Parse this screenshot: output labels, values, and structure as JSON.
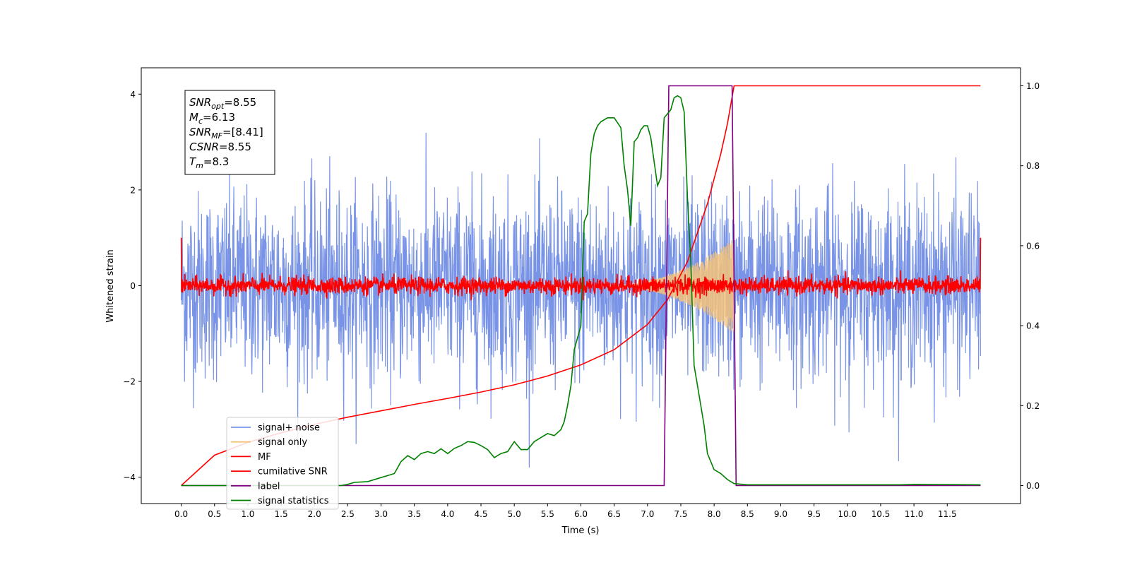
{
  "chart_data": {
    "type": "line",
    "xlabel": "Time (s)",
    "ylabel": "Whitened strain",
    "xlim": [
      -0.6,
      12.6
    ],
    "ylim": [
      -4.55,
      4.55
    ],
    "y2lim": [
      -0.045,
      1.045
    ],
    "x_ticks": [
      "0.0",
      "0.5",
      "1.0",
      "1.5",
      "2.0",
      "2.5",
      "3.0",
      "3.5",
      "4.0",
      "4.5",
      "5.0",
      "5.5",
      "6.0",
      "6.5",
      "7.0",
      "7.5",
      "8.0",
      "8.5",
      "9.0",
      "9.5",
      "10.0",
      "10.5",
      "11.0",
      "11.5"
    ],
    "y_ticks": [
      "4",
      "2",
      "0",
      "−2",
      "−4"
    ],
    "y2_ticks": [
      "1.0",
      "0.8",
      "0.6",
      "0.4",
      "0.2",
      "0.0"
    ],
    "legend_position": "lower-left",
    "legend": [
      {
        "label": "signal+ noise",
        "color": "#7994e6"
      },
      {
        "label": "signal only",
        "color": "#f5c27a"
      },
      {
        "label": "MF",
        "color": "#ff0000"
      },
      {
        "label": "cumilative SNR",
        "color": "#ff0000"
      },
      {
        "label": "label",
        "color": "#800080"
      },
      {
        "label": "signal statistics",
        "color": "#008000"
      }
    ],
    "annotation": {
      "lines": [
        {
          "main": "SNR",
          "sub": "opt",
          "rest": "=8.55"
        },
        {
          "main": "M",
          "sub": "c",
          "rest": "=6.13"
        },
        {
          "main": "SNR",
          "sub": "MF",
          "rest": "=[8.41]"
        },
        {
          "main": "CSNR",
          "sub": "",
          "rest": "=8.55"
        },
        {
          "main": "T",
          "sub": "m",
          "rest": "=8.3"
        }
      ]
    },
    "series": [
      {
        "name": "signal+ noise",
        "axis": "left",
        "style": "noise",
        "t_start": 0.0,
        "t_end": 12.0,
        "amplitude": 1.3,
        "peak_max": 4.1,
        "peak_min": -3.8
      },
      {
        "name": "signal only",
        "axis": "left",
        "style": "chirp",
        "t_start": 6.3,
        "t_end": 8.3,
        "peak_amplitude": 1.0
      },
      {
        "name": "MF",
        "axis": "left",
        "style": "noise",
        "t_start": 0.0,
        "t_end": 12.0,
        "amplitude": 0.12,
        "edge_value": 1.0
      },
      {
        "name": "cumilative SNR",
        "axis": "right",
        "x": [
          0.0,
          0.5,
          1.0,
          1.5,
          2.0,
          2.5,
          3.0,
          3.5,
          4.0,
          4.5,
          5.0,
          5.5,
          6.0,
          6.5,
          7.0,
          7.3,
          7.6,
          7.9,
          8.1,
          8.2,
          8.3,
          8.3,
          12.0
        ],
        "y": [
          0.0,
          0.076,
          0.108,
          0.132,
          0.153,
          0.171,
          0.187,
          0.203,
          0.218,
          0.234,
          0.252,
          0.274,
          0.302,
          0.34,
          0.403,
          0.465,
          0.56,
          0.705,
          0.83,
          0.905,
          1.0,
          1.0,
          1.0
        ]
      },
      {
        "name": "label",
        "axis": "right",
        "x": [
          0.0,
          7.25,
          7.32,
          8.27,
          8.33,
          12.0
        ],
        "y": [
          0.0,
          0.0,
          1.0,
          1.0,
          0.0,
          0.0
        ]
      },
      {
        "name": "signal statistics",
        "axis": "right",
        "x": [
          0.0,
          0.5,
          1.0,
          1.5,
          2.0,
          2.4,
          2.5,
          2.6,
          2.8,
          3.0,
          3.1,
          3.2,
          3.3,
          3.4,
          3.5,
          3.6,
          3.7,
          3.8,
          3.9,
          4.0,
          4.1,
          4.2,
          4.3,
          4.4,
          4.5,
          4.6,
          4.7,
          4.8,
          4.9,
          5.0,
          5.1,
          5.2,
          5.3,
          5.4,
          5.5,
          5.6,
          5.7,
          5.75,
          5.8,
          5.85,
          5.9,
          5.95,
          6.0,
          6.05,
          6.1,
          6.15,
          6.2,
          6.25,
          6.3,
          6.4,
          6.5,
          6.6,
          6.65,
          6.7,
          6.75,
          6.8,
          6.85,
          6.9,
          6.95,
          7.0,
          7.05,
          7.1,
          7.15,
          7.2,
          7.25,
          7.3,
          7.35,
          7.4,
          7.45,
          7.5,
          7.55,
          7.6,
          7.65,
          7.7,
          7.75,
          7.8,
          7.85,
          7.9,
          8.0,
          8.1,
          8.2,
          8.3,
          8.5,
          9.0,
          10.0,
          10.8,
          11.0,
          12.0
        ],
        "y": [
          0.0,
          0.0,
          0.0,
          0.0,
          0.0,
          0.0,
          0.003,
          0.008,
          0.01,
          0.02,
          0.025,
          0.03,
          0.06,
          0.075,
          0.065,
          0.08,
          0.085,
          0.08,
          0.092,
          0.08,
          0.093,
          0.1,
          0.11,
          0.108,
          0.1,
          0.09,
          0.07,
          0.08,
          0.085,
          0.11,
          0.09,
          0.09,
          0.11,
          0.12,
          0.13,
          0.125,
          0.14,
          0.16,
          0.2,
          0.25,
          0.34,
          0.37,
          0.4,
          0.66,
          0.68,
          0.83,
          0.88,
          0.9,
          0.91,
          0.92,
          0.92,
          0.895,
          0.8,
          0.74,
          0.65,
          0.86,
          0.87,
          0.89,
          0.9,
          0.9,
          0.87,
          0.81,
          0.75,
          0.77,
          0.92,
          0.93,
          0.94,
          0.97,
          0.975,
          0.97,
          0.935,
          0.72,
          0.56,
          0.3,
          0.25,
          0.2,
          0.15,
          0.08,
          0.04,
          0.03,
          0.015,
          0.005,
          0.002,
          0.002,
          0.002,
          0.002,
          0.003,
          0.002
        ]
      }
    ]
  }
}
